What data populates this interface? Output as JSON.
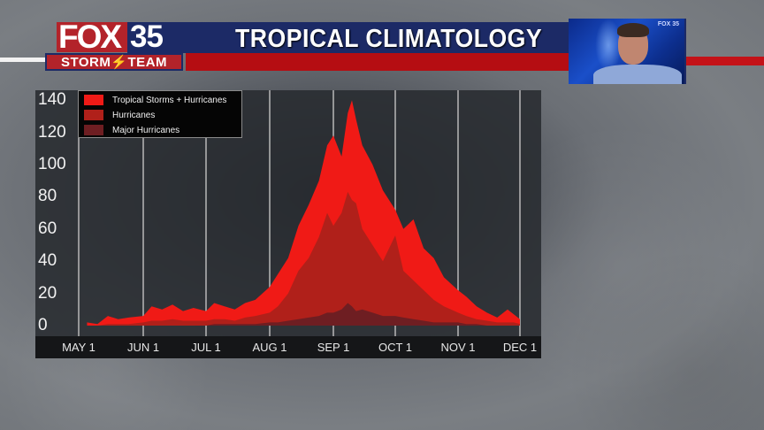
{
  "header": {
    "logo_fox": "FOX",
    "logo_number": "35",
    "logo_sub": "STORM⚡TEAM",
    "title": "TROPICAL CLIMATOLOGY"
  },
  "presenter_feed": {
    "logo_mini": "FOX 35"
  },
  "colors": {
    "title_bar": "#1c2a66",
    "accent_red": "#b50d12",
    "tropical_storms_hurricanes": "#f01a16",
    "hurricanes": "#b0201a",
    "major_hurricanes": "#6e1e22"
  },
  "chart_data": {
    "type": "area",
    "title": "TROPICAL CLIMATOLOGY",
    "xlabel": "",
    "ylabel": "",
    "ylim": [
      0,
      140
    ],
    "yticks": [
      0,
      20,
      40,
      60,
      80,
      100,
      120,
      140
    ],
    "xticks": [
      "MAY 1",
      "JUN 1",
      "JUL 1",
      "AUG 1",
      "SEP 1",
      "OCT 1",
      "NOV 1",
      "DEC 1"
    ],
    "grid": "vertical lines at month starts",
    "legend_position": "top-left",
    "legend": [
      "Tropical Storms + Hurricanes",
      "Hurricanes",
      "Major Hurricanes"
    ],
    "x": [
      "May 5",
      "May 10",
      "May 15",
      "May 20",
      "May 25",
      "Jun 1",
      "Jun 5",
      "Jun 10",
      "Jun 15",
      "Jun 20",
      "Jun 25",
      "Jul 1",
      "Jul 5",
      "Jul 10",
      "Jul 15",
      "Jul 20",
      "Jul 25",
      "Aug 1",
      "Aug 5",
      "Aug 10",
      "Aug 15",
      "Aug 20",
      "Aug 25",
      "Aug 29",
      "Sep 1",
      "Sep 5",
      "Sep 8",
      "Sep 10",
      "Sep 12",
      "Sep 15",
      "Sep 20",
      "Sep 25",
      "Oct 1",
      "Oct 5",
      "Oct 10",
      "Oct 15",
      "Oct 20",
      "Oct 25",
      "Nov 1",
      "Nov 5",
      "Nov 10",
      "Nov 15",
      "Nov 20",
      "Nov 25",
      "Nov 28",
      "Dec 1"
    ],
    "series": [
      {
        "name": "Tropical Storms + Hurricanes",
        "values": [
          2,
          1,
          6,
          4,
          5,
          6,
          12,
          10,
          13,
          9,
          11,
          9,
          14,
          12,
          10,
          14,
          16,
          24,
          32,
          42,
          62,
          75,
          90,
          112,
          118,
          105,
          132,
          140,
          128,
          112,
          100,
          84,
          72,
          60,
          66,
          48,
          42,
          30,
          22,
          18,
          12,
          8,
          5,
          10,
          7,
          4
        ]
      },
      {
        "name": "Hurricanes",
        "values": [
          0,
          0,
          1,
          1,
          1,
          2,
          3,
          3,
          4,
          3,
          3,
          3,
          4,
          4,
          3,
          5,
          6,
          8,
          12,
          20,
          34,
          42,
          55,
          70,
          62,
          70,
          83,
          78,
          76,
          60,
          50,
          40,
          56,
          34,
          28,
          22,
          16,
          12,
          8,
          6,
          4,
          3,
          2,
          2,
          2,
          1
        ]
      },
      {
        "name": "Major Hurricanes",
        "values": [
          0,
          0,
          0,
          0,
          0,
          0,
          0,
          0,
          0,
          0,
          0,
          0,
          1,
          1,
          1,
          1,
          1,
          2,
          2,
          3,
          4,
          5,
          6,
          8,
          8,
          10,
          14,
          12,
          9,
          10,
          8,
          6,
          6,
          5,
          4,
          3,
          2,
          2,
          2,
          1,
          1,
          0,
          0,
          0,
          0,
          0
        ]
      }
    ]
  }
}
